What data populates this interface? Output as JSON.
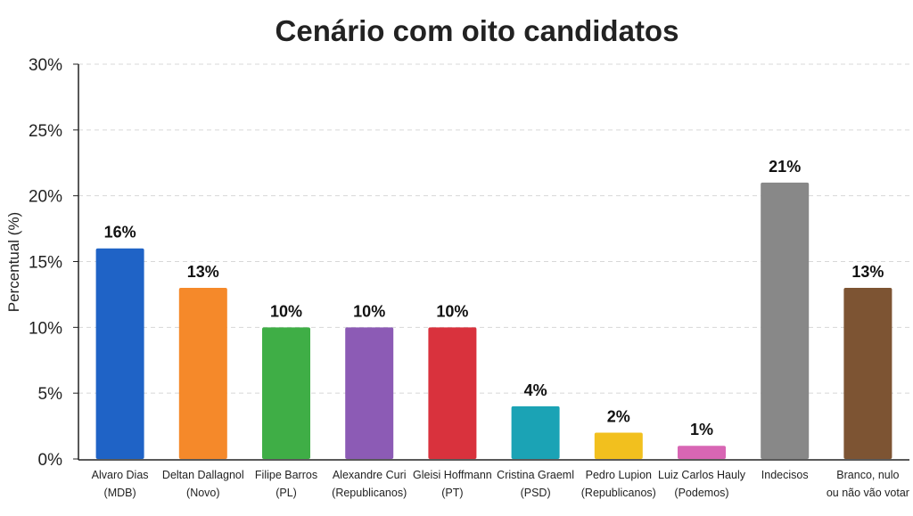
{
  "chart_data": {
    "type": "bar",
    "title": "Cenário com oito candidatos",
    "xlabel": "",
    "ylabel": "Percentual (%)",
    "ylim": [
      0,
      30
    ],
    "yticks": [
      0,
      5,
      10,
      15,
      20,
      25,
      30
    ],
    "ytick_labels": [
      "0%",
      "5%",
      "10%",
      "15%",
      "20%",
      "25%",
      "30%"
    ],
    "grid": "horizontal dashed",
    "categories": [
      [
        "Alvaro Dias",
        "(MDB)"
      ],
      [
        "Deltan Dallagnol",
        "(Novo)"
      ],
      [
        "Filipe Barros",
        "(PL)"
      ],
      [
        "Alexandre Curi",
        "(Republicanos)"
      ],
      [
        "Gleisi Hoffmann",
        "(PT)"
      ],
      [
        "Cristina Graeml",
        "(PSD)"
      ],
      [
        "Pedro Lupion",
        "(Republicanos)"
      ],
      [
        "Luiz Carlos Hauly",
        "(Podemos)"
      ],
      [
        "Indecisos"
      ],
      [
        "Branco, nulo",
        "ou não vão votar"
      ]
    ],
    "values": [
      16,
      13,
      10,
      10,
      10,
      4,
      2,
      1,
      21,
      13
    ],
    "data_labels": [
      "16%",
      "13%",
      "10%",
      "10%",
      "10%",
      "4%",
      "2%",
      "1%",
      "21%",
      "13%"
    ],
    "colors": [
      "#1f63c6",
      "#f5892a",
      "#3fae46",
      "#8c5bb5",
      "#d9323d",
      "#1ba3b5",
      "#f2c01e",
      "#d866b4",
      "#888888",
      "#7d5433"
    ]
  }
}
